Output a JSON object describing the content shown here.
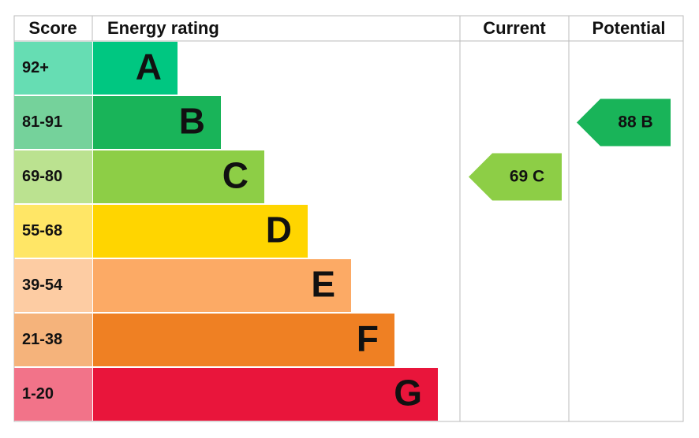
{
  "header": {
    "score": "Score",
    "rating": "Energy rating",
    "current": "Current",
    "potential": "Potential"
  },
  "bands": [
    {
      "score": "92+",
      "letter": "A",
      "color": "#00c781"
    },
    {
      "score": "81-91",
      "letter": "B",
      "color": "#19b459"
    },
    {
      "score": "69-80",
      "letter": "C",
      "color": "#8dce46"
    },
    {
      "score": "55-68",
      "letter": "D",
      "color": "#ffd500"
    },
    {
      "score": "39-54",
      "letter": "E",
      "color": "#fcaa65"
    },
    {
      "score": "21-38",
      "letter": "F",
      "color": "#ef8023"
    },
    {
      "score": "1-20",
      "letter": "G",
      "color": "#e9153b"
    }
  ],
  "current": {
    "score": "69",
    "letter": "C"
  },
  "potential": {
    "score": "88",
    "letter": "B"
  }
}
